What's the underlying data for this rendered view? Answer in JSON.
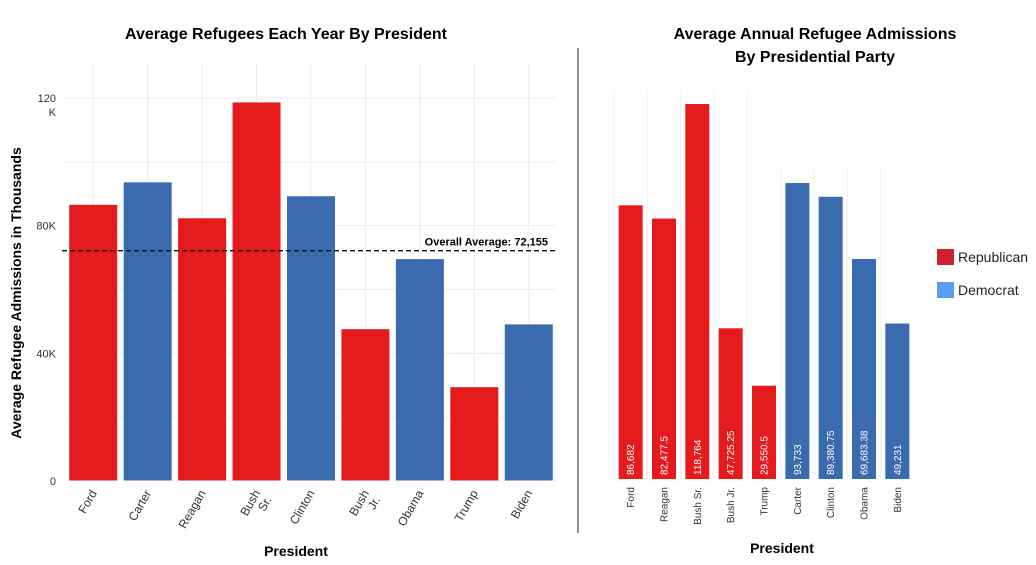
{
  "colors": {
    "republican": "#e41a1c",
    "democrat": "#3a6baf",
    "legend_republican": "#cc2229",
    "legend_democrat": "#5b9cf0",
    "average_line": "#111111"
  },
  "chart_data": [
    {
      "type": "bar",
      "title": "Average Refugees Each Year By President",
      "xlabel": "President",
      "ylabel": "Average Refugee Admissions in Thousands",
      "ylim": [
        0,
        130000
      ],
      "y_ticks": [
        {
          "value": 0,
          "label": "0"
        },
        {
          "value": 40000,
          "label": "40K"
        },
        {
          "value": 80000,
          "label": "80K"
        },
        {
          "value": 120000,
          "label": "120 K"
        }
      ],
      "categories": [
        "Ford",
        "Carter",
        "Reagan",
        "Bush Sr.",
        "Clinton",
        "Bush Jr.",
        "Obama",
        "Trump",
        "Biden"
      ],
      "values": [
        86682,
        93733,
        82477.5,
        118764,
        89380.75,
        47725.25,
        69683.38,
        29550.5,
        49231
      ],
      "party": [
        "republican",
        "democrat",
        "republican",
        "republican",
        "democrat",
        "republican",
        "democrat",
        "republican",
        "democrat"
      ],
      "reference_line": {
        "value": 72155,
        "label": "Overall Average: 72,155",
        "style": "dashed"
      },
      "grid": true
    },
    {
      "type": "bar",
      "title": "Average Annual Refugee Admissions By Presidential Party",
      "xlabel": "President",
      "ylim": [
        0,
        120000
      ],
      "categories": [
        "Ford",
        "Reagan",
        "Bush Sr.",
        "Bush Jr.",
        "Trump",
        "Carter",
        "Clinton",
        "Obama",
        "Biden"
      ],
      "values": [
        86682,
        82477.5,
        118764,
        47725.25,
        29550.5,
        93733,
        89380.75,
        69683.38,
        49231
      ],
      "data_labels": [
        "86,682",
        "82,477.5",
        "118,764",
        "47,725.25",
        "29,550.5",
        "93,733",
        "89,380.75",
        "69,683.38",
        "49,231"
      ],
      "party": [
        "republican",
        "republican",
        "republican",
        "republican",
        "republican",
        "democrat",
        "democrat",
        "democrat",
        "democrat"
      ],
      "legend": [
        {
          "name": "Republican",
          "key": "republican"
        },
        {
          "name": "Democrat",
          "key": "democrat"
        }
      ],
      "legend_position": "right"
    }
  ]
}
